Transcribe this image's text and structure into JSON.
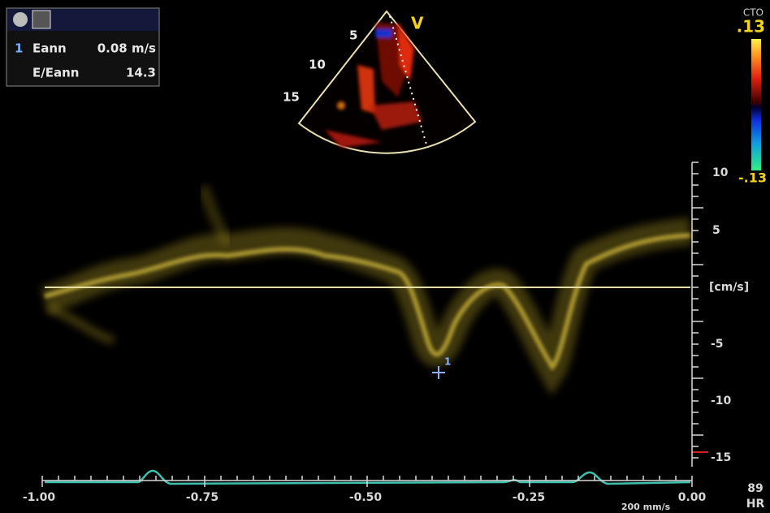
{
  "measurements": {
    "items": [
      {
        "index": "1",
        "label": "Eann",
        "value": "0.08 m/s"
      },
      {
        "label": "E/Eann",
        "value": "14.3"
      }
    ]
  },
  "sector": {
    "depth_labels": [
      "5",
      "10",
      "15"
    ],
    "mode": "V"
  },
  "color_scale": {
    "title": "CTO",
    "max": ".13",
    "min": "-.13"
  },
  "velocity_axis": {
    "ticks": [
      "10",
      "5",
      "-5",
      "-10",
      "-15"
    ],
    "unit": "[cm/s]"
  },
  "time_axis": {
    "ticks": [
      "-1.00",
      "-0.75",
      "-0.50",
      "-0.25",
      "0.00"
    ],
    "sweep": "200 mm/s"
  },
  "heart_rate": {
    "value": "89",
    "label": "HR"
  },
  "cursor": {
    "label": "1"
  }
}
